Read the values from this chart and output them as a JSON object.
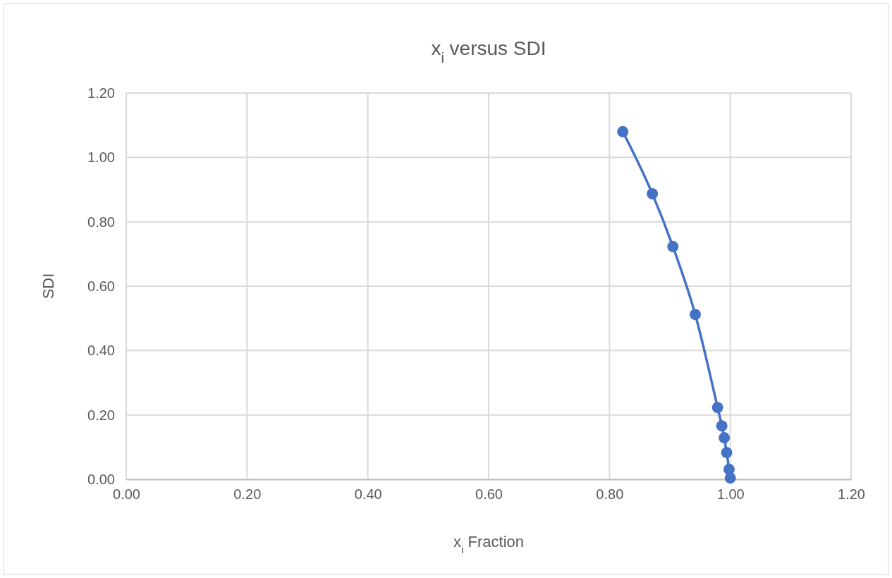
{
  "chart_data": {
    "type": "line",
    "title": "x$_{i}$ versus SDI",
    "xlabel": "x$_{i}$ Fraction",
    "ylabel": "SDI",
    "x": [
      0.822,
      0.871,
      0.905,
      0.942,
      0.979,
      0.986,
      0.99,
      0.994,
      0.998,
      0.999,
      1.0
    ],
    "series": [
      {
        "color": "#4472c4",
        "values": [
          1.08,
          0.887,
          0.723,
          0.512,
          0.223,
          0.166,
          0.129,
          0.083,
          0.031,
          null,
          0.004
        ]
      }
    ],
    "xlim": [
      0,
      1.2
    ],
    "xticks": [
      {
        "value": 0,
        "label": "0.00"
      },
      {
        "value": 0.2,
        "label": "0.20"
      },
      {
        "value": 0.4,
        "label": "0.40"
      },
      {
        "value": 0.6,
        "label": "0.60"
      },
      {
        "value": 0.8,
        "label": "0.80"
      },
      {
        "value": 1.0,
        "label": "1.00"
      },
      {
        "value": 1.2,
        "label": "1.20"
      }
    ],
    "ylim": [
      0,
      1.2
    ],
    "yticks": [
      {
        "value": 0,
        "label": "0.00"
      },
      {
        "value": 0.2,
        "label": "0.20"
      },
      {
        "value": 0.4,
        "label": "0.40"
      },
      {
        "value": 0.6,
        "label": "0.60"
      },
      {
        "value": 0.8,
        "label": "0.80"
      },
      {
        "value": 1.0,
        "label": "1.00"
      },
      {
        "value": 1.2,
        "label": "1.20"
      }
    ],
    "grid": true,
    "marker": "circle",
    "line_style": "solid"
  }
}
